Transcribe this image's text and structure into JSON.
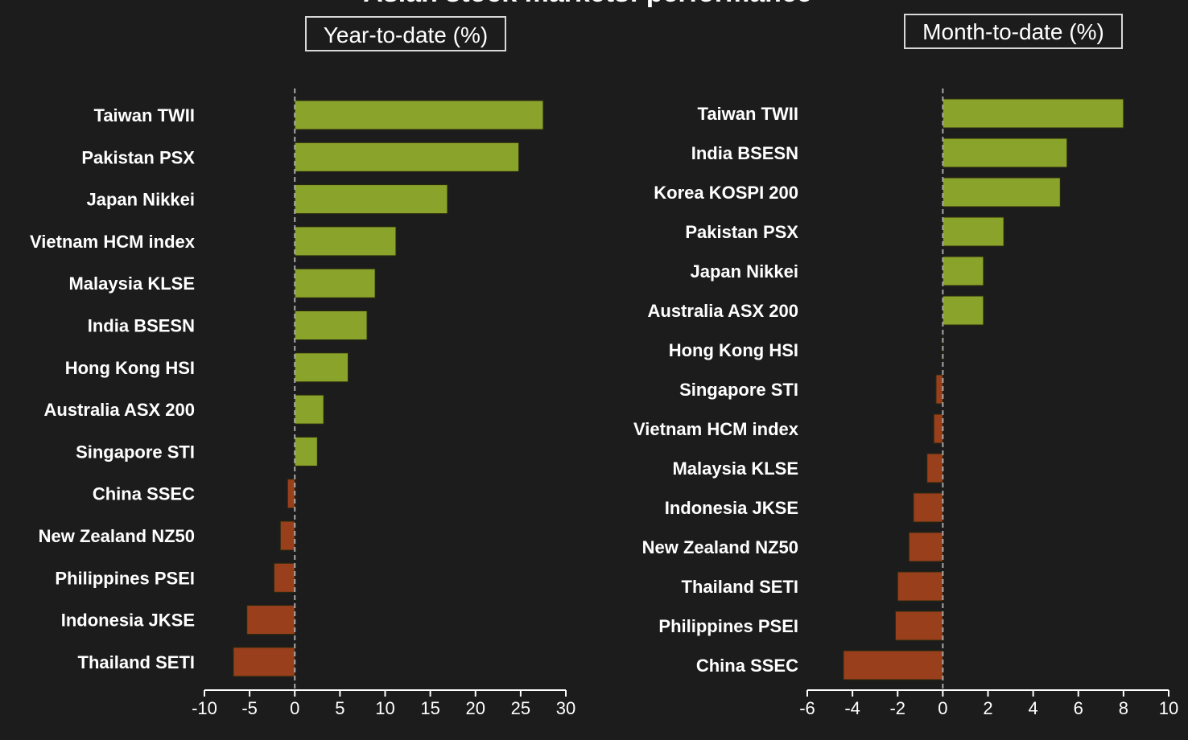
{
  "title": "Asian stock markets: performance",
  "colors": {
    "background": "#1c1c1c",
    "positive": "#8aa32a",
    "negative": "#9a3f1c",
    "axis": "#ffffff",
    "zero_line": "#a8a8a8"
  },
  "chart_data": [
    {
      "type": "bar",
      "orientation": "horizontal",
      "title": "Year-to-date (%)",
      "categories": [
        "Taiwan TWII",
        "Pakistan PSX",
        "Japan Nikkei",
        "Vietnam HCM index",
        "Malaysia KLSE",
        "India BSESN",
        "Hong Kong HSI",
        "Australia ASX 200",
        "Singapore STI",
        "China SSEC",
        "New Zealand NZ50",
        "Philippines PSEI",
        "Indonesia JKSE",
        "Thailand SETI"
      ],
      "values": [
        27.5,
        24.8,
        16.9,
        11.2,
        8.9,
        8.0,
        5.9,
        3.2,
        2.5,
        -0.8,
        -1.6,
        -2.3,
        -5.3,
        -6.8
      ],
      "xlim": [
        -10,
        30
      ],
      "xticks": [
        "-10",
        "-5",
        "0",
        "5",
        "10",
        "15",
        "20",
        "25",
        "30"
      ],
      "xlabel": "",
      "ylabel": "",
      "grid": false,
      "legend": "none"
    },
    {
      "type": "bar",
      "orientation": "horizontal",
      "title": "Month-to-date (%)",
      "categories": [
        "Taiwan TWII",
        "India BSESN",
        "Korea KOSPI 200",
        "Pakistan PSX",
        "Japan Nikkei",
        "Australia ASX 200",
        "Hong Kong HSI",
        "Singapore STI",
        "Vietnam HCM index",
        "Malaysia KLSE",
        "Indonesia JKSE",
        "New Zealand NZ50",
        "Thailand SETI",
        "Philippines PSEI",
        "China SSEC"
      ],
      "values": [
        8.0,
        5.5,
        5.2,
        2.7,
        1.8,
        1.8,
        0.0,
        -0.3,
        -0.4,
        -0.7,
        -1.3,
        -1.5,
        -2.0,
        -2.1,
        -4.4
      ],
      "xlim": [
        -6,
        10
      ],
      "xticks": [
        "-6",
        "-4",
        "-2",
        "0",
        "2",
        "4",
        "6",
        "8",
        "10"
      ],
      "xlabel": "",
      "ylabel": "",
      "grid": false,
      "legend": "none"
    }
  ]
}
